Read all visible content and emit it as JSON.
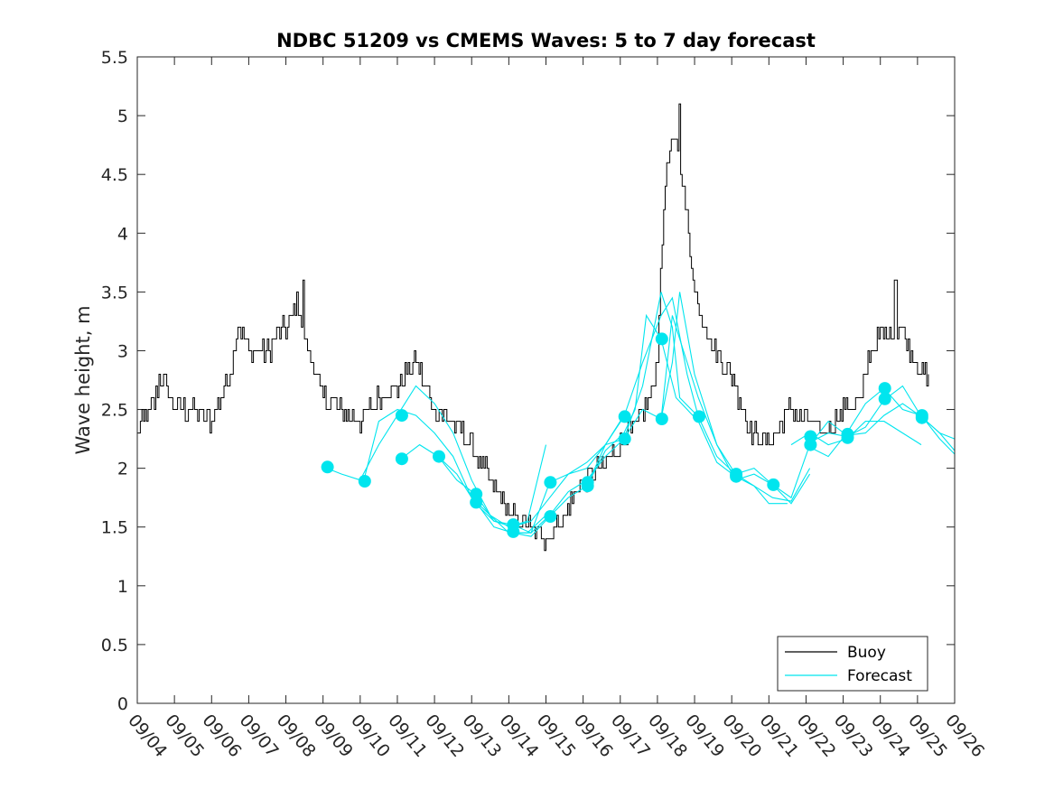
{
  "chart_data": {
    "type": "line",
    "title": "NDBC 51209 vs CMEMS Waves: 5 to 7 day forecast",
    "ylabel": "Wave height, m",
    "xlabel": "",
    "ylim": [
      0,
      5.5
    ],
    "xlim_days": [
      0,
      22
    ],
    "yticks": [
      0,
      0.5,
      1,
      1.5,
      2,
      2.5,
      3,
      3.5,
      4,
      4.5,
      5,
      5.5
    ],
    "ytick_labels": [
      "0",
      "0.5",
      "1",
      "1.5",
      "2",
      "2.5",
      "3",
      "3.5",
      "4",
      "4.5",
      "5",
      "5.5"
    ],
    "xtick_labels": [
      "09/04",
      "09/05",
      "09/06",
      "09/07",
      "09/08",
      "09/09",
      "09/10",
      "09/11",
      "09/12",
      "09/13",
      "09/14",
      "09/15",
      "09/16",
      "09/17",
      "09/18",
      "09/19",
      "09/20",
      "09/21",
      "09/22",
      "09/23",
      "09/24",
      "09/25",
      "09/26"
    ],
    "x_units": "days since 09/04 00:00",
    "legend": {
      "location": "bottom-right",
      "entries": [
        "Buoy",
        "Forecast"
      ]
    },
    "colors": {
      "buoy": "#000000",
      "forecast": "#00e5ee",
      "axes": "#262626"
    },
    "series": [
      {
        "name": "Buoy",
        "color": "#000000",
        "noise": 0.09,
        "points": [
          [
            0,
            2.3
          ],
          [
            0.5,
            2.6
          ],
          [
            0.6,
            2.8
          ],
          [
            1.0,
            2.5
          ],
          [
            1.5,
            2.5
          ],
          [
            2.0,
            2.4
          ],
          [
            2.5,
            2.8
          ],
          [
            2.7,
            3.2
          ],
          [
            3.0,
            3.0
          ],
          [
            3.5,
            3.0
          ],
          [
            4.0,
            3.2
          ],
          [
            4.3,
            3.4
          ],
          [
            4.6,
            3.0
          ],
          [
            5.0,
            2.6
          ],
          [
            5.5,
            2.5
          ],
          [
            6.0,
            2.4
          ],
          [
            6.5,
            2.6
          ],
          [
            7.0,
            2.7
          ],
          [
            7.5,
            2.9
          ],
          [
            8.0,
            2.5
          ],
          [
            8.5,
            2.4
          ],
          [
            9.0,
            2.2
          ],
          [
            9.5,
            1.9
          ],
          [
            10.0,
            1.6
          ],
          [
            10.5,
            1.5
          ],
          [
            11.0,
            1.4
          ],
          [
            11.5,
            1.6
          ],
          [
            12.0,
            1.9
          ],
          [
            12.5,
            2.0
          ],
          [
            13.0,
            2.2
          ],
          [
            13.5,
            2.4
          ],
          [
            13.8,
            2.6
          ],
          [
            14.0,
            3.0
          ],
          [
            14.2,
            4.5
          ],
          [
            14.5,
            4.8
          ],
          [
            14.7,
            4.4
          ],
          [
            15.0,
            3.5
          ],
          [
            15.5,
            3.0
          ],
          [
            16.0,
            2.8
          ],
          [
            16.5,
            2.3
          ],
          [
            17.0,
            2.2
          ],
          [
            17.5,
            2.5
          ],
          [
            18.0,
            2.4
          ],
          [
            18.5,
            2.3
          ],
          [
            19.0,
            2.5
          ],
          [
            19.5,
            2.6
          ],
          [
            19.7,
            3.0
          ],
          [
            20.0,
            3.1
          ],
          [
            20.5,
            3.2
          ],
          [
            20.8,
            3.0
          ],
          [
            21.0,
            2.9
          ],
          [
            21.2,
            2.8
          ],
          [
            21.3,
            2.7
          ]
        ],
        "spikes": [
          [
            4.45,
            3.6
          ],
          [
            14.57,
            5.1
          ],
          [
            20.4,
            3.6
          ]
        ]
      },
      {
        "name": "Forecast",
        "color": "#00e5ee",
        "points": [
          [
            5.1,
            2.0
          ],
          [
            5.5,
            1.95
          ],
          [
            6.0,
            1.9
          ],
          [
            6.5,
            2.2
          ],
          [
            7.0,
            2.45
          ],
          [
            7.5,
            2.7
          ],
          [
            8.0,
            2.55
          ],
          [
            8.5,
            2.3
          ],
          [
            9.0,
            1.9
          ],
          [
            9.5,
            1.6
          ],
          [
            10.0,
            1.45
          ],
          [
            10.5,
            1.45
          ],
          [
            11.0,
            1.6
          ]
        ]
      },
      {
        "name": "Forecast",
        "color": "#00e5ee",
        "points": [
          [
            6.1,
            1.9
          ],
          [
            6.5,
            2.4
          ],
          [
            7.0,
            2.5
          ],
          [
            7.5,
            2.45
          ],
          [
            8.0,
            2.3
          ],
          [
            8.5,
            2.1
          ],
          [
            9.0,
            1.75
          ],
          [
            9.5,
            1.6
          ],
          [
            10.0,
            1.5
          ],
          [
            10.5,
            1.55
          ],
          [
            11.0,
            2.2
          ]
        ]
      },
      {
        "name": "Forecast",
        "color": "#00e5ee",
        "points": [
          [
            7.1,
            2.08
          ],
          [
            7.6,
            2.2
          ],
          [
            8.1,
            2.1
          ],
          [
            8.6,
            1.95
          ],
          [
            9.1,
            1.7
          ],
          [
            9.6,
            1.55
          ],
          [
            10.1,
            1.5
          ],
          [
            10.6,
            1.55
          ],
          [
            11.1,
            1.75
          ],
          [
            11.6,
            1.95
          ],
          [
            12.1,
            2.05
          ],
          [
            12.6,
            2.2
          ],
          [
            13.1,
            2.45
          ]
        ]
      },
      {
        "name": "Forecast",
        "color": "#00e5ee",
        "points": [
          [
            8.1,
            2.1
          ],
          [
            8.6,
            1.9
          ],
          [
            9.1,
            1.78
          ],
          [
            9.6,
            1.55
          ],
          [
            10.1,
            1.52
          ],
          [
            10.6,
            1.45
          ],
          [
            11.1,
            1.6
          ],
          [
            11.6,
            1.8
          ],
          [
            12.1,
            1.9
          ],
          [
            12.6,
            2.1
          ],
          [
            13.1,
            2.25
          ],
          [
            13.6,
            2.7
          ],
          [
            14.1,
            3.5
          ],
          [
            14.4,
            3.2
          ],
          [
            14.6,
            2.6
          ],
          [
            15.1,
            2.44
          ]
        ]
      },
      {
        "name": "Forecast",
        "color": "#00e5ee",
        "points": [
          [
            9.1,
            1.72
          ],
          [
            9.6,
            1.5
          ],
          [
            10.1,
            1.45
          ],
          [
            10.6,
            1.45
          ],
          [
            11.1,
            1.88
          ],
          [
            11.6,
            1.95
          ],
          [
            12.1,
            2.0
          ],
          [
            12.6,
            2.2
          ],
          [
            13.1,
            2.25
          ],
          [
            13.6,
            2.5
          ],
          [
            14.1,
            2.42
          ],
          [
            14.4,
            3.3
          ],
          [
            14.7,
            3.0
          ],
          [
            15.1,
            2.6
          ],
          [
            15.6,
            2.2
          ],
          [
            16.1,
            1.95
          ],
          [
            16.6,
            2.0
          ],
          [
            17.1,
            1.86
          ],
          [
            17.6,
            1.7
          ],
          [
            18.1,
            1.95
          ]
        ]
      },
      {
        "name": "Forecast",
        "color": "#00e5ee",
        "points": [
          [
            10.1,
            1.45
          ],
          [
            10.6,
            1.42
          ],
          [
            11.1,
            1.59
          ],
          [
            11.6,
            1.75
          ],
          [
            12.1,
            1.85
          ],
          [
            12.6,
            2.15
          ],
          [
            13.1,
            2.3
          ],
          [
            13.4,
            2.5
          ],
          [
            13.7,
            3.3
          ],
          [
            14.1,
            3.1
          ],
          [
            14.5,
            2.6
          ],
          [
            15.1,
            2.4
          ],
          [
            15.6,
            2.05
          ],
          [
            16.1,
            1.93
          ],
          [
            16.6,
            1.85
          ],
          [
            17.1,
            1.75
          ],
          [
            17.6,
            1.72
          ],
          [
            18.1,
            2.0
          ]
        ]
      },
      {
        "name": "Forecast",
        "color": "#00e5ee",
        "points": [
          [
            12.1,
            1.85
          ],
          [
            12.6,
            2.2
          ],
          [
            13.1,
            2.44
          ],
          [
            13.6,
            2.9
          ],
          [
            14.1,
            3.3
          ],
          [
            14.4,
            3.45
          ],
          [
            14.8,
            2.8
          ],
          [
            15.1,
            2.44
          ],
          [
            15.6,
            2.1
          ],
          [
            16.1,
            1.95
          ],
          [
            16.6,
            1.85
          ],
          [
            17.0,
            1.7
          ],
          [
            17.5,
            1.7
          ]
        ]
      },
      {
        "name": "Forecast",
        "color": "#00e5ee",
        "points": [
          [
            14.1,
            2.42
          ],
          [
            14.4,
            2.9
          ],
          [
            14.6,
            3.5
          ],
          [
            15.0,
            2.8
          ],
          [
            15.6,
            2.2
          ],
          [
            16.1,
            1.9
          ],
          [
            16.6,
            1.95
          ],
          [
            17.1,
            1.86
          ],
          [
            17.6,
            1.75
          ],
          [
            18.1,
            2.2
          ],
          [
            18.6,
            2.4
          ],
          [
            19.1,
            2.28
          ],
          [
            19.6,
            2.3
          ],
          [
            20.1,
            2.45
          ],
          [
            20.6,
            2.55
          ],
          [
            21.1,
            2.44
          ],
          [
            21.6,
            2.3
          ],
          [
            22.0,
            2.15
          ]
        ]
      },
      {
        "name": "Forecast",
        "color": "#00e5ee",
        "points": [
          [
            18.1,
            2.22
          ],
          [
            18.6,
            2.3
          ],
          [
            19.1,
            2.27
          ],
          [
            19.6,
            2.35
          ],
          [
            20.1,
            2.58
          ],
          [
            20.6,
            2.7
          ],
          [
            21.1,
            2.44
          ],
          [
            21.6,
            2.3
          ],
          [
            22.0,
            2.25
          ]
        ]
      },
      {
        "name": "Forecast",
        "color": "#00e5ee",
        "points": [
          [
            18.1,
            2.18
          ],
          [
            18.6,
            2.1
          ],
          [
            19.1,
            2.3
          ],
          [
            19.6,
            2.55
          ],
          [
            20.1,
            2.68
          ],
          [
            20.6,
            2.5
          ],
          [
            21.1,
            2.45
          ],
          [
            21.6,
            2.25
          ],
          [
            22.0,
            2.12
          ]
        ]
      },
      {
        "name": "Forecast",
        "color": "#00e5ee",
        "points": [
          [
            17.6,
            2.2
          ],
          [
            18.1,
            2.3
          ],
          [
            18.6,
            2.2
          ],
          [
            19.1,
            2.25
          ],
          [
            19.6,
            2.4
          ],
          [
            20.1,
            2.4
          ],
          [
            20.6,
            2.3
          ],
          [
            21.1,
            2.2
          ]
        ]
      }
    ],
    "forecast_markers": [
      [
        5.12,
        2.01
      ],
      [
        6.12,
        1.89
      ],
      [
        7.12,
        2.45
      ],
      [
        7.12,
        2.08
      ],
      [
        8.12,
        2.1
      ],
      [
        9.12,
        1.78
      ],
      [
        9.12,
        1.71
      ],
      [
        10.12,
        1.52
      ],
      [
        10.12,
        1.46
      ],
      [
        11.12,
        1.88
      ],
      [
        11.12,
        1.59
      ],
      [
        12.12,
        1.88
      ],
      [
        12.12,
        1.85
      ],
      [
        13.12,
        2.44
      ],
      [
        13.12,
        2.25
      ],
      [
        14.12,
        3.1
      ],
      [
        14.12,
        2.42
      ],
      [
        15.12,
        2.44
      ],
      [
        16.12,
        1.95
      ],
      [
        16.12,
        1.93
      ],
      [
        17.12,
        1.86
      ],
      [
        18.12,
        2.27
      ],
      [
        18.12,
        2.2
      ],
      [
        19.12,
        2.29
      ],
      [
        19.12,
        2.26
      ],
      [
        20.12,
        2.68
      ],
      [
        20.12,
        2.59
      ],
      [
        21.12,
        2.45
      ],
      [
        21.12,
        2.43
      ]
    ]
  }
}
